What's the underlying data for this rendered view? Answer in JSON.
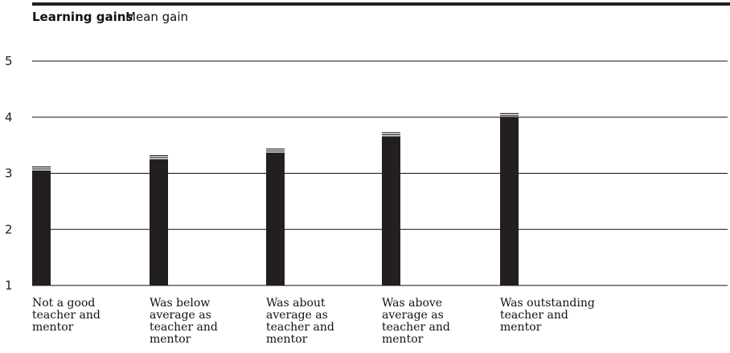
{
  "colors": {
    "bar": "#231f20",
    "grid": "#111111",
    "top_rule": "#231f20"
  },
  "chart_data": {
    "type": "bar",
    "title": "Learning gains",
    "subtitle": "Mean gain",
    "xlabel": "",
    "ylabel": "",
    "ylim": [
      1,
      5
    ],
    "yticks": [
      "1",
      "2",
      "3",
      "4",
      "5"
    ],
    "grid": true,
    "categories": [
      "Not a good teacher and mentor",
      "Was below average as teacher and mentor",
      "Was about average as teacher and mentor",
      "Was above average as teacher and mentor",
      "Was outstanding teacher and mentor"
    ],
    "category_lines": [
      [
        "Not a good",
        "teacher and",
        "mentor"
      ],
      [
        "Was below",
        "average as",
        "teacher and",
        "mentor"
      ],
      [
        "Was about",
        "average as",
        "teacher and",
        "mentor"
      ],
      [
        "Was above",
        "average as",
        "teacher and",
        "mentor"
      ],
      [
        "Was outstanding",
        "teacher and",
        "mentor"
      ]
    ],
    "values": [
      3.05,
      3.25,
      3.37,
      3.66,
      4.0
    ]
  }
}
